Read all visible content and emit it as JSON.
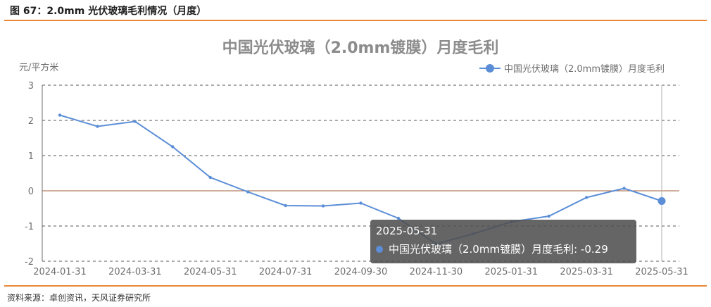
{
  "caption": "图 67：2.0mm 光伏玻璃毛利情况（月度）",
  "source": "资料来源：卓创资讯，天风证券研究所",
  "colors": {
    "series": "#5b8ed7",
    "accent_line": "#e8883a"
  },
  "tooltip": {
    "title": "2025-05-31",
    "series_name": "中国光伏玻璃（2.0mm镀膜）月度毛利:",
    "value": "-0.29"
  },
  "chart_data": {
    "type": "line",
    "title": "中国光伏玻璃（2.0mm镀膜）月度毛利",
    "ylabel": "元/平方米",
    "ylim": [
      -2,
      3
    ],
    "yticks": [
      3,
      2,
      1,
      0,
      -1,
      -2
    ],
    "legend_position": "top-right",
    "grid": true,
    "x": [
      "2024-01-31",
      "2024-02-29",
      "2024-03-31",
      "2024-04-30",
      "2024-05-31",
      "2024-06-30",
      "2024-07-31",
      "2024-08-31",
      "2024-09-30",
      "2024-10-31",
      "2024-11-30",
      "2024-12-31",
      "2025-01-31",
      "2025-02-28",
      "2025-03-31",
      "2025-04-30",
      "2025-05-31"
    ],
    "xtick_labels": [
      "2024-01-31",
      "2024-03-31",
      "2024-05-31",
      "2024-07-31",
      "2024-09-30",
      "2024-11-30",
      "2025-01-31",
      "2025-03-31",
      "2025-05-31"
    ],
    "series": [
      {
        "name": "中国光伏玻璃（2.0mm镀膜）月度毛利",
        "values": [
          2.15,
          1.83,
          1.97,
          1.25,
          0.38,
          -0.03,
          -0.42,
          -0.43,
          -0.35,
          -0.78,
          -1.51,
          -1.22,
          -0.88,
          -0.72,
          -0.19,
          0.07,
          -0.29
        ]
      }
    ]
  }
}
